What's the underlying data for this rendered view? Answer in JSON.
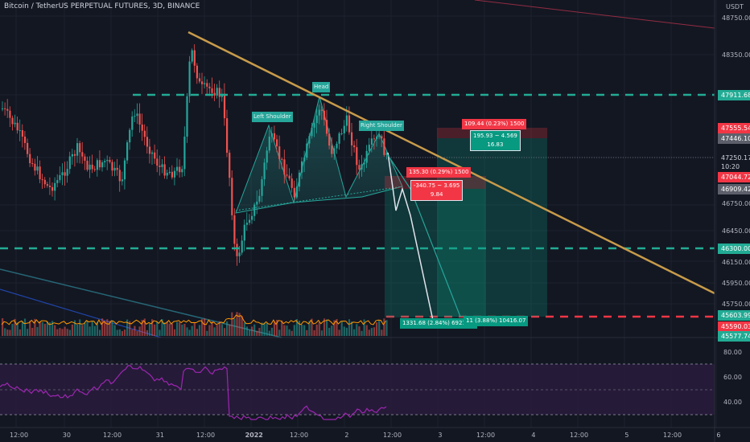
{
  "header": {
    "title": "Bitcoin / TetherUS PERPETUAL FUTURES, 3D, BINANCE",
    "currency": "USDT"
  },
  "colors": {
    "background": "#131722",
    "grid": "#1e222d",
    "axis_text": "#b2b5be",
    "bull": "#26a69a",
    "bear": "#ef5350",
    "trendline": "#c89b4a",
    "level_green": "#22ab94",
    "level_red": "#f23645",
    "rsi_band": "#2a1b3d",
    "rsi_line": "#9c27b0"
  },
  "price_axis": {
    "ticks": [
      "48750.00",
      "48350.00",
      "47750.00",
      "47250.00",
      "46750.00",
      "46450.00",
      "46150.00",
      "45950.00",
      "45750.00"
    ],
    "badges": [
      {
        "text": "47911.68",
        "style": "green"
      },
      {
        "text": "47555.54",
        "style": "red"
      },
      {
        "text": "47446.10",
        "style": "gray"
      },
      {
        "text": "47250.17",
        "style": "dark"
      },
      {
        "text": "10:20",
        "style": "dark"
      },
      {
        "text": "47044.72",
        "style": "red"
      },
      {
        "text": "46909.42",
        "style": "gray"
      },
      {
        "text": "46300.00",
        "style": "green"
      },
      {
        "text": "45603.99",
        "style": "green"
      },
      {
        "text": "45590.03",
        "style": "red"
      },
      {
        "text": "45577.74",
        "style": "green"
      }
    ]
  },
  "rsi_axis": {
    "ticks": [
      "80.00",
      "60.00",
      "40.00"
    ]
  },
  "time_axis": {
    "ticks": [
      "12:00",
      "30",
      "12:00",
      "31",
      "12:00",
      "2022",
      "12:00",
      "2",
      "12:00",
      "3",
      "12:00",
      "4",
      "12:00",
      "5",
      "12:00",
      "6"
    ]
  },
  "pattern_labels": {
    "left_shoulder": "Left Shoulder",
    "head": "Head",
    "right_shoulder": "Right Shoulder"
  },
  "positions": {
    "long_top_red": "109.44 (0.23%) 1500",
    "long_green_line1": "195.93 ~ 4.569",
    "long_green_line2": "16.83",
    "short_red": "135.30 (0.29%) 1500",
    "short_info_line1": "-340.75 ~ 3.695",
    "short_info_line2": "9.84",
    "target_left": "1331.68 (2.84%) 6921.21",
    "target_right": "11 (3.88%) 10416.07"
  }
}
